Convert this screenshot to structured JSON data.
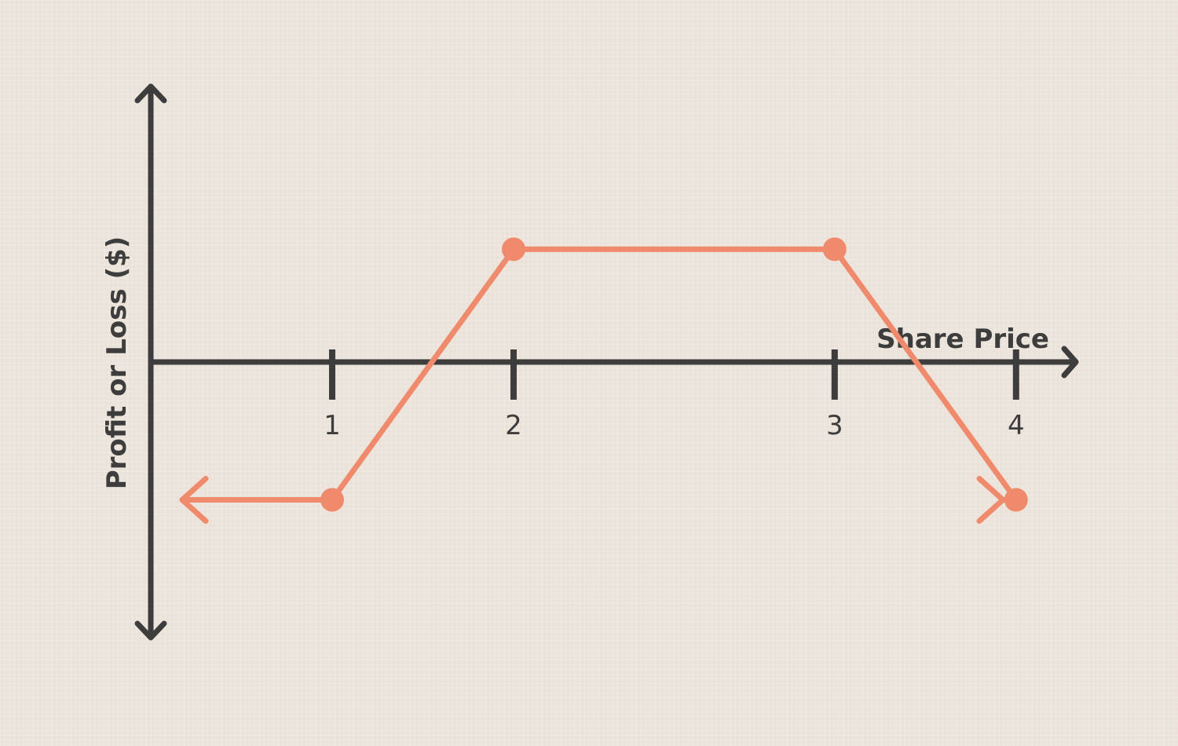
{
  "chart_data": {
    "type": "line",
    "xlabel": "Share Price",
    "ylabel": "Profit or Loss ($)",
    "xticks": [
      "1",
      "2",
      "3",
      "4"
    ],
    "xlim": [
      0,
      5.1
    ],
    "ylim": [
      -2.1,
      2.3
    ],
    "series": [
      {
        "x": [
          1,
          2,
          3.77,
          4.77
        ],
        "y": [
          -1,
          1,
          1,
          -1
        ],
        "extends_left": true,
        "extends_right": true
      }
    ],
    "colors": {
      "axis": "#3d3d3d",
      "series": "#f08a6c"
    }
  }
}
